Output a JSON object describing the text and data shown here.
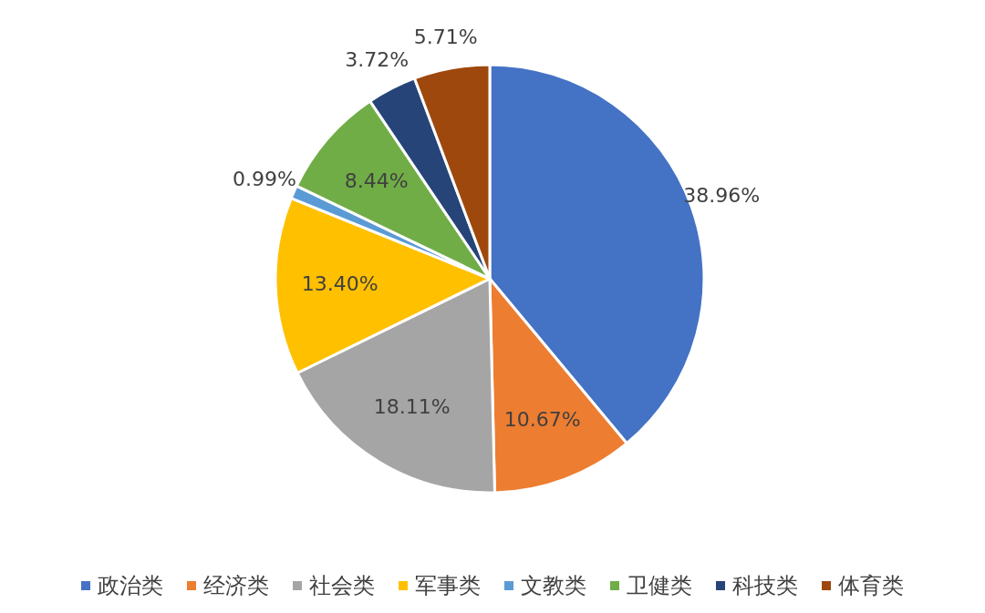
{
  "chart_data": {
    "type": "pie",
    "categories": [
      "政治类",
      "经济类",
      "社会类",
      "军事类",
      "文教类",
      "卫健类",
      "科技类",
      "体育类"
    ],
    "values": [
      38.96,
      10.67,
      18.11,
      13.4,
      0.99,
      8.44,
      3.72,
      5.71
    ],
    "colors": [
      "#4472c4",
      "#ed7d31",
      "#a5a5a5",
      "#ffc000",
      "#5b9bd5",
      "#70ad47",
      "#264478",
      "#9e480e"
    ],
    "value_labels": [
      "38.96%",
      "10.67%",
      "18.11%",
      "13.40%",
      "0.99%",
      "8.44%",
      "3.72%",
      "5.71%"
    ],
    "legend": "bottom"
  }
}
